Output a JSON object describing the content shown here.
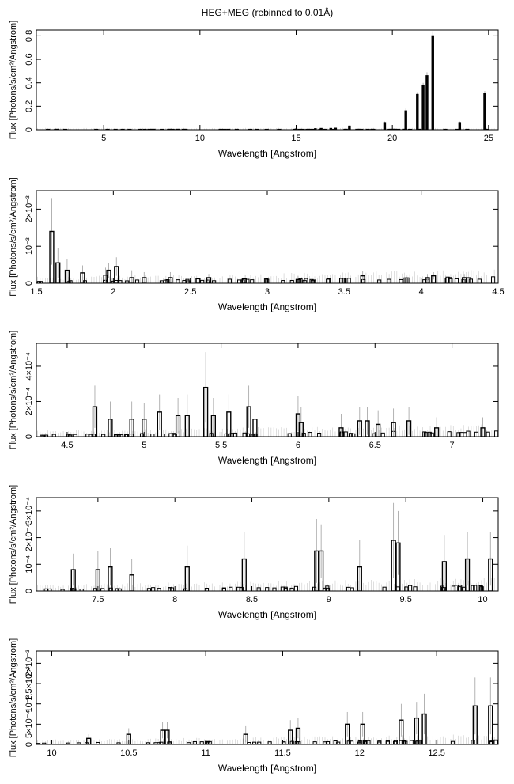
{
  "figure": {
    "title": "HEG+MEG (rebinned to 0.01Å)"
  },
  "chart_data": [
    {
      "type": "bar",
      "ylabel": "Flux [Photons/s/cm²/Angstrom]",
      "xlabel": "Wavelength [Angstrom]",
      "xlim": [
        1.5,
        25.5
      ],
      "ylim": [
        0,
        0.85
      ],
      "x_ticks": [
        5,
        10,
        15,
        20,
        25
      ],
      "x_tick_labels": [
        "5",
        "10",
        "15",
        "20",
        "25"
      ],
      "y_ticks": [
        0,
        0.2,
        0.4,
        0.6,
        0.8
      ],
      "y_tick_labels": [
        "0",
        "0.2",
        "0.4",
        "0.6",
        "0.8"
      ],
      "series": [
        {
          "x": [
            15.0,
            16.0,
            16.3,
            16.8,
            17.05,
            17.77,
            19.6,
            20.7,
            21.3,
            21.6,
            21.8,
            22.1,
            23.5,
            24.8
          ],
          "y": [
            0.005,
            0.008,
            0.01,
            0.01,
            0.012,
            0.03,
            0.06,
            0.16,
            0.3,
            0.38,
            0.46,
            0.8,
            0.06,
            0.31
          ],
          "errors": [
            0.003,
            0.003,
            0.003,
            0.003,
            0.003,
            0.005,
            0.01,
            0.02,
            0.02,
            0.02,
            0.03,
            0.04,
            0.01,
            0.02
          ]
        }
      ]
    },
    {
      "type": "bar",
      "ylabel": "Flux [Photons/s/cm²/Angstrom]",
      "xlabel": "Wavelength [Angstrom]",
      "xlim": [
        1.5,
        4.5
      ],
      "ylim": [
        0,
        0.0025
      ],
      "x_ticks": [
        1.5,
        2,
        2.5,
        3,
        3.5,
        4,
        4.5
      ],
      "x_tick_labels": [
        "1.5",
        "2",
        "2.5",
        "3",
        "3.5",
        "4",
        "4.5"
      ],
      "y_ticks": [
        0,
        0.001,
        0.002
      ],
      "y_tick_labels": [
        "0",
        "10⁻³",
        "2×10⁻³"
      ],
      "series": [
        {
          "x": [
            1.6,
            1.64,
            1.7,
            1.8,
            1.95,
            1.97,
            2.02,
            2.12,
            2.2,
            2.37,
            2.55,
            2.62,
            2.85,
            3.2,
            3.62,
            4.04,
            4.08,
            4.28
          ],
          "y": [
            0.0014,
            0.00055,
            0.00035,
            0.00028,
            0.00022,
            0.00035,
            0.00045,
            0.00015,
            0.00015,
            0.00015,
            0.00012,
            0.00015,
            0.00012,
            0.0001,
            0.0002,
            0.00015,
            0.0002,
            0.00015
          ],
          "errors": [
            0.0009,
            0.0004,
            0.0003,
            0.0002,
            0.0002,
            0.0002,
            0.00025,
            0.0002,
            0.00015,
            0.00015,
            0.0001,
            0.0001,
            0.0001,
            0.0001,
            0.00012,
            0.0001,
            0.0001,
            0.0001
          ]
        }
      ]
    },
    {
      "type": "bar",
      "ylabel": "Flux [Photons/s/cm²/Angstrom]",
      "xlabel": "Wavelength [Angstrom]",
      "xlim": [
        4.3,
        7.3
      ],
      "ylim": [
        0,
        0.00053
      ],
      "x_ticks": [
        4.5,
        5,
        5.5,
        6,
        6.5,
        7
      ],
      "x_tick_labels": [
        "4.5",
        "5",
        "5.5",
        "6",
        "6.5",
        "7"
      ],
      "y_ticks": [
        0,
        0.0002,
        0.0004
      ],
      "y_tick_labels": [
        "0",
        "2×10⁻⁴",
        "4×10⁻⁴"
      ],
      "series": [
        {
          "x": [
            4.68,
            4.78,
            4.92,
            5.0,
            5.1,
            5.22,
            5.28,
            5.4,
            5.45,
            5.55,
            5.68,
            5.72,
            6.0,
            6.02,
            6.28,
            6.4,
            6.45,
            6.52,
            6.62,
            6.72,
            6.9,
            7.2
          ],
          "y": [
            0.00017,
            0.0001,
            0.0001,
            0.0001,
            0.00014,
            0.00012,
            0.00012,
            0.00028,
            0.00012,
            0.00014,
            0.00017,
            0.0001,
            0.00013,
            8e-05,
            5e-05,
            9e-05,
            9e-05,
            7e-05,
            8e-05,
            9e-05,
            5e-05,
            5e-05
          ],
          "errors": [
            0.00012,
            0.0001,
            0.0001,
            9e-05,
            0.0001,
            0.0001,
            0.00012,
            0.0002,
            0.0001,
            0.0001,
            0.00012,
            9e-05,
            0.0001,
            9e-05,
            8e-05,
            8e-05,
            8e-05,
            8e-05,
            8e-05,
            8e-05,
            6e-05,
            6e-05
          ]
        }
      ]
    },
    {
      "type": "bar",
      "ylabel": "Flux [Photons/s/cm²/Angstrom]",
      "xlabel": "Wavelength [Angstrom]",
      "xlim": [
        7.1,
        10.1
      ],
      "ylim": [
        0,
        0.00035
      ],
      "x_ticks": [
        7.5,
        8,
        8.5,
        9,
        9.5,
        10
      ],
      "x_tick_labels": [
        "7.5",
        "8",
        "8.5",
        "9",
        "9.5",
        "10"
      ],
      "y_ticks": [
        0,
        0.0001,
        0.0002,
        0.0003
      ],
      "y_tick_labels": [
        "0",
        "10⁻⁴",
        "2×10⁻⁴",
        "3×10⁻⁴"
      ],
      "series": [
        {
          "x": [
            7.34,
            7.5,
            7.58,
            7.72,
            8.08,
            8.45,
            8.92,
            8.95,
            9.2,
            9.42,
            9.45,
            9.75,
            9.9,
            10.05
          ],
          "y": [
            8e-05,
            8e-05,
            9e-05,
            6e-05,
            9e-05,
            0.00012,
            0.00015,
            0.00015,
            9e-05,
            0.00019,
            0.00018,
            0.00011,
            0.00012,
            0.00012
          ],
          "errors": [
            6e-05,
            7e-05,
            7e-05,
            6e-05,
            8e-05,
            0.0001,
            0.00012,
            0.0001,
            0.0001,
            0.00014,
            0.00012,
            0.0001,
            0.0001,
            0.0001
          ]
        }
      ]
    },
    {
      "type": "bar",
      "ylabel": "Flux [Photons/s/cm²/Angstrom]",
      "xlabel": "Wavelength [Angstrom]",
      "xlim": [
        9.9,
        12.9
      ],
      "ylim": [
        0,
        0.0023
      ],
      "x_ticks": [
        10,
        10.5,
        11,
        11.5,
        12,
        12.5
      ],
      "x_tick_labels": [
        "10",
        "10.5",
        "11",
        "11.5",
        "12",
        "12.5"
      ],
      "y_ticks": [
        0,
        0.0005,
        0.001,
        0.0015,
        0.002
      ],
      "y_tick_labels": [
        "0",
        "5×10⁻⁴",
        "10⁻³",
        "1.5×10⁻³",
        "2×10⁻³"
      ],
      "series": [
        {
          "x": [
            10.24,
            10.5,
            10.72,
            10.75,
            11.26,
            11.55,
            11.6,
            11.92,
            12.02,
            12.27,
            12.37,
            12.42,
            12.75,
            12.85
          ],
          "y": [
            0.00015,
            0.00025,
            0.00035,
            0.00035,
            0.00025,
            0.00035,
            0.0004,
            0.0005,
            0.0005,
            0.0006,
            0.00065,
            0.00075,
            0.00095,
            0.00095
          ],
          "errors": [
            0.0001,
            0.00015,
            0.0002,
            0.0002,
            0.0002,
            0.00025,
            0.00025,
            0.0003,
            0.0003,
            0.0004,
            0.0004,
            0.0005,
            0.0007,
            0.0007
          ]
        }
      ]
    }
  ]
}
